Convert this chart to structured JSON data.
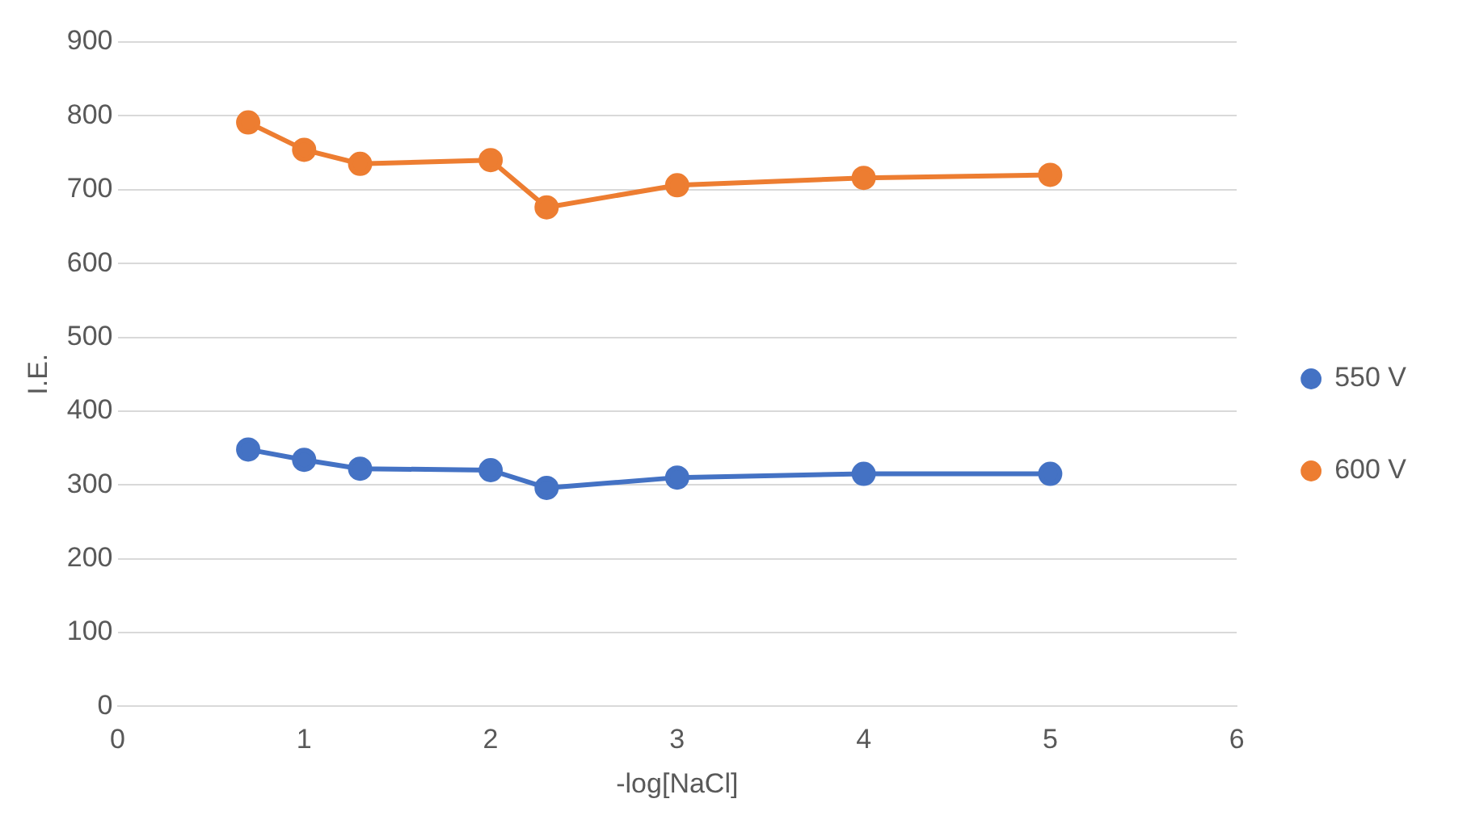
{
  "chart_data": {
    "type": "line",
    "xlabel": "-log[NaCl]",
    "ylabel": "I.E.",
    "x": [
      0.7,
      1,
      1.3,
      2,
      2.3,
      3,
      4,
      5
    ],
    "series": [
      {
        "name": "550 V",
        "color": "#4472c4",
        "values": [
          348,
          334,
          322,
          320,
          296,
          310,
          315,
          315
        ]
      },
      {
        "name": "600 V",
        "color": "#ed7d31",
        "values": [
          791,
          754,
          735,
          740,
          676,
          706,
          716,
          720
        ]
      }
    ],
    "xlim": [
      0,
      6
    ],
    "xticks": [
      0,
      1,
      2,
      3,
      4,
      5,
      6
    ],
    "ylim": [
      0,
      900
    ],
    "yticks": [
      0,
      100,
      200,
      300,
      400,
      500,
      600,
      700,
      800,
      900
    ],
    "grid": "y",
    "legend": "right",
    "marker": "circle",
    "line_style": "solid"
  }
}
